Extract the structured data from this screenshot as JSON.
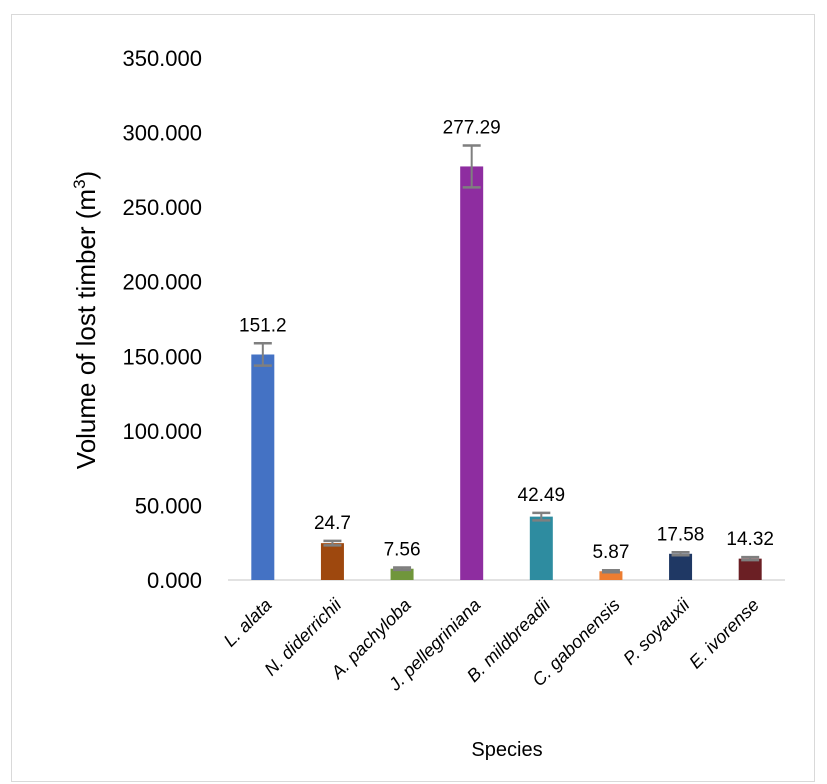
{
  "chart_data": {
    "type": "bar",
    "categories": [
      "L. alata",
      "N. diderrichii",
      "A. pachyloba",
      "J. pellegriniana",
      "B. mildbreadii",
      "C. gabonensis",
      "P. soyauxii",
      "E. ivorense"
    ],
    "values": [
      151.2,
      24.7,
      7.56,
      277.29,
      42.49,
      5.87,
      17.58,
      14.32
    ],
    "data_labels": [
      "151.2",
      "24.7",
      "7.56",
      "277.29",
      "42.49",
      "5.87",
      "17.58",
      "14.32"
    ],
    "error": [
      7.5,
      1.5,
      0.8,
      14,
      2.5,
      0.7,
      1.0,
      1.0
    ],
    "colors": [
      "#4472c4",
      "#9e480e",
      "#70963b",
      "#8e2da0",
      "#2e8ca0",
      "#ed7d31",
      "#1f3864",
      "#6b1f24"
    ],
    "error_color": "#7f7f7f",
    "ylim": [
      0,
      350
    ],
    "yticks": [
      0,
      50,
      100,
      150,
      200,
      250,
      300,
      350
    ],
    "ytick_labels": [
      "0.000",
      "50.000",
      "100.000",
      "150.000",
      "200.000",
      "250.000",
      "300.000",
      "350.000"
    ],
    "ylabel": "Volume of lost timber (m",
    "ylabel_sup": "3",
    "ylabel_close": ")",
    "xlabel": "Species",
    "grid": false,
    "legend": "none"
  }
}
